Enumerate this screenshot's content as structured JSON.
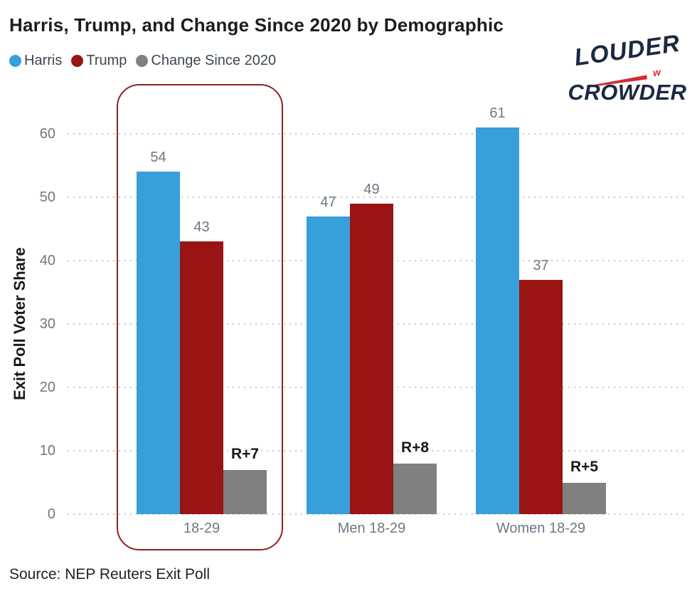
{
  "title": "Harris, Trump, and Change Since 2020 by Demographic",
  "legend": [
    {
      "label": "Harris",
      "color": "#379fd9"
    },
    {
      "label": "Trump",
      "color": "#9a1414"
    },
    {
      "label": "Change Since 2020",
      "color": "#808080"
    }
  ],
  "logo": {
    "line1": "LOUDER",
    "line2": "CROWDER",
    "swoosh_glyph": "w",
    "navy": "#1b2942",
    "red": "#d22b35"
  },
  "chart_data": {
    "type": "bar",
    "categories": [
      "18-29",
      "Men 18-29",
      "Women 18-29"
    ],
    "series": [
      {
        "name": "Harris",
        "color": "#379fd9",
        "values": [
          54,
          47,
          61
        ],
        "labels": [
          "54",
          "47",
          "61"
        ],
        "emphasis": false
      },
      {
        "name": "Trump",
        "color": "#9a1414",
        "values": [
          43,
          49,
          37
        ],
        "labels": [
          "43",
          "49",
          "37"
        ],
        "emphasis": false
      },
      {
        "name": "Change Since 2020",
        "color": "#808080",
        "values": [
          7,
          8,
          5
        ],
        "labels": [
          "R+7",
          "R+8",
          "R+5"
        ],
        "emphasis": true
      }
    ],
    "ylabel": "Exit Poll Voter Share",
    "xlabel": "",
    "yticks": [
      0,
      10,
      20,
      30,
      40,
      50,
      60
    ],
    "ylim": [
      0,
      66
    ],
    "grid": "horizontal-dotted",
    "legend_position": "top-left",
    "highlight_group": "18-29",
    "colors": {
      "grid": "#c8c8c8",
      "tick_label": "#6d7885",
      "value_label": "#6d7885",
      "diff_label": "#1a1a1a",
      "highlight_border": "#8b2423"
    }
  },
  "source": "Source: NEP Reuters Exit Poll"
}
